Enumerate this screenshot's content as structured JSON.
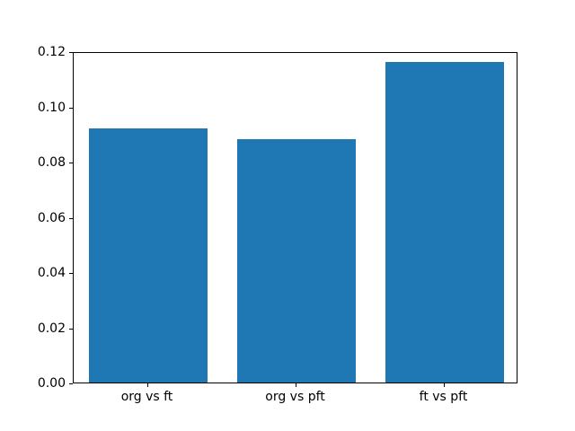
{
  "chart_data": {
    "type": "bar",
    "title": "",
    "xlabel": "",
    "ylabel": "",
    "categories": [
      "org vs ft",
      "org vs pft",
      "ft vs pft"
    ],
    "values": [
      0.092,
      0.088,
      0.116
    ],
    "ylim": [
      0,
      0.12
    ],
    "yticks": [
      0.0,
      0.02,
      0.04,
      0.06,
      0.08,
      0.1,
      0.12
    ],
    "ytick_label_format_decimals": 2,
    "bar_color": "#1f77b4",
    "bar_width_fraction": 0.8,
    "grid": false,
    "legend": "none",
    "background_color": "#ffffff",
    "spine_color": "#000000",
    "tick_label_color": "#000000"
  }
}
